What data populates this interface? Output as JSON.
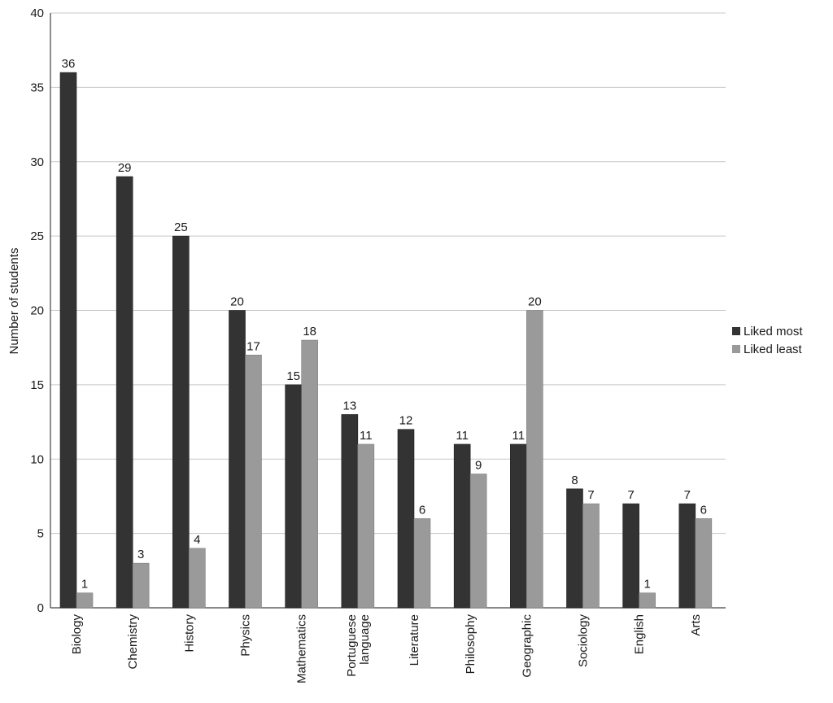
{
  "chart_data": {
    "type": "bar",
    "ylabel": "Number of students",
    "ylim": [
      0,
      40
    ],
    "yticks": [
      0,
      5,
      10,
      15,
      20,
      25,
      30,
      35,
      40
    ],
    "grid": true,
    "legend_position": "right",
    "categories": [
      "Biology",
      "Chemistry",
      "History",
      "Physics",
      "Mathematics",
      "Portuguese\nlanguage",
      "Literature",
      "Philosophy",
      "Geographic",
      "Sociology",
      "English",
      "Arts"
    ],
    "series": [
      {
        "name": "Liked most",
        "color": "#333333",
        "values": [
          36,
          29,
          25,
          20,
          15,
          13,
          12,
          11,
          11,
          8,
          7,
          7
        ]
      },
      {
        "name": "Liked least",
        "color": "#9a9a9a",
        "values": [
          1,
          3,
          4,
          17,
          18,
          11,
          6,
          9,
          20,
          7,
          1,
          6
        ]
      }
    ]
  }
}
